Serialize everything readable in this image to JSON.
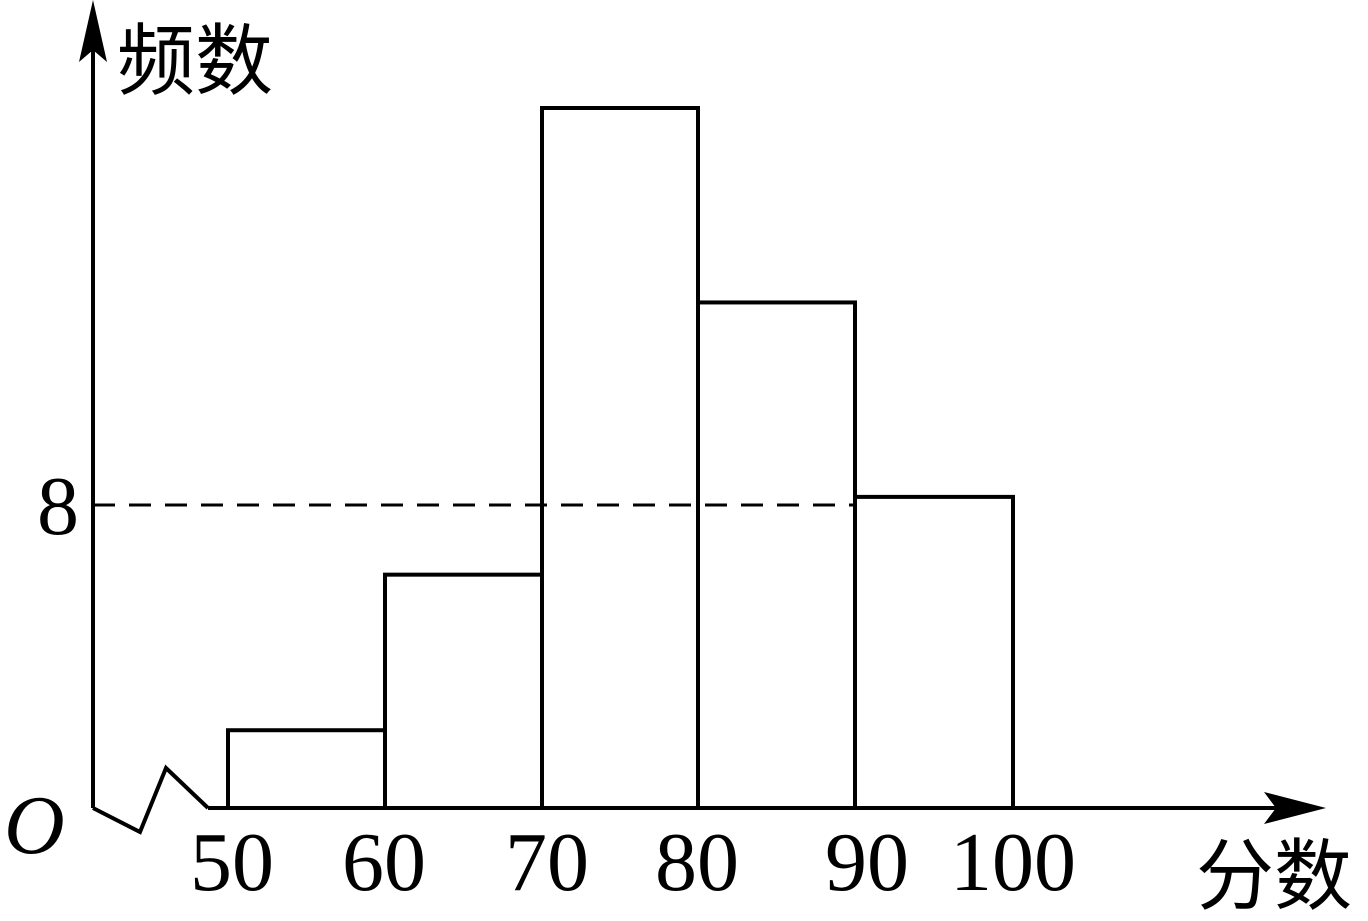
{
  "chart_data": {
    "type": "bar",
    "ylabel": "频数",
    "xlabel": "分数",
    "origin_label": "O",
    "x_tick_labels": [
      "50",
      "60",
      "70",
      "80",
      "90",
      "100"
    ],
    "y_tick_labels": [
      "8"
    ],
    "bins": [
      {
        "from": 50,
        "to": 60,
        "value": 2
      },
      {
        "from": 60,
        "to": 70,
        "value": 6
      },
      {
        "from": 70,
        "to": 80,
        "value": 18
      },
      {
        "from": 80,
        "to": 90,
        "value": 13
      },
      {
        "from": 90,
        "to": 100,
        "value": 8
      }
    ],
    "reference_line": {
      "y": 8,
      "style": "dashed"
    },
    "axis_break": true,
    "ylim": [
      0,
      18
    ],
    "grid": false,
    "colors": {
      "stroke": "#000000",
      "fill": "#ffffff"
    }
  }
}
